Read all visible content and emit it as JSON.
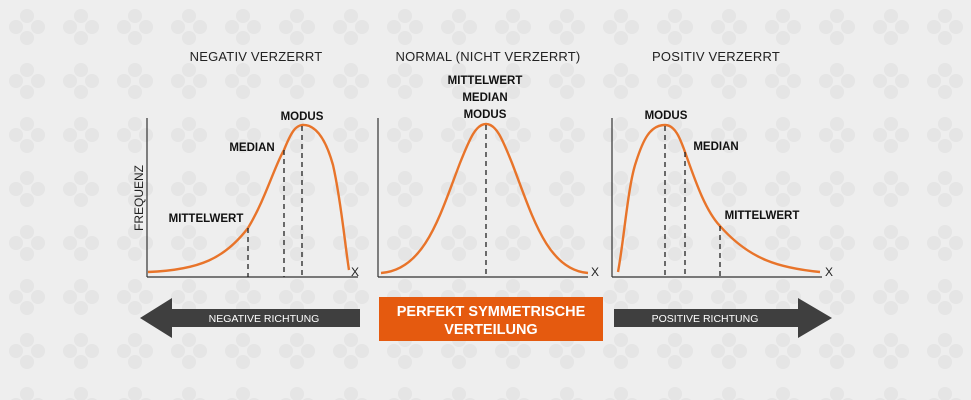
{
  "panels": [
    {
      "title": "NEGATIV VERZERRT",
      "labels": [
        "MODUS",
        "MEDIAN",
        "MITTELWERT"
      ],
      "ylabel": "FREQUENZ",
      "xlabel": "X"
    },
    {
      "title": "NORMAL (NICHT VERZERRT)",
      "labels": [
        "MITTELWERT",
        "MEDIAN",
        "MODUS"
      ],
      "xlabel": "X"
    },
    {
      "title": "POSITIV VERZERRT",
      "labels": [
        "MODUS",
        "MEDIAN",
        "MITTELWERT"
      ],
      "xlabel": "X"
    }
  ],
  "bottom": {
    "left_arrow": "NEGATIVE RICHTUNG",
    "center_line1": "PERFEKT SYMMETRISCHE",
    "center_line2": "VERTEILUNG",
    "right_arrow": "POSITIVE RICHTUNG"
  },
  "colors": {
    "curve": "#e8742a",
    "center_box": "#e55a0f",
    "arrow": "#3f3f3f",
    "axis": "#333333",
    "background": "#eeeeee"
  }
}
